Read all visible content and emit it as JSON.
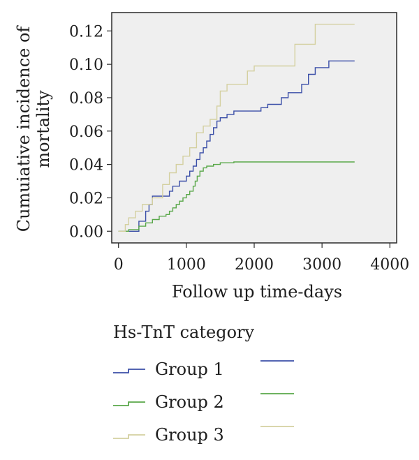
{
  "chart_data": {
    "type": "line",
    "step": true,
    "title": "",
    "xlabel": "Follow up time-days",
    "ylabel": "Cumuiative incidence of mortality",
    "xlim": [
      -100,
      4100
    ],
    "ylim": [
      -0.007,
      0.131
    ],
    "xticks": [
      0,
      1000,
      2000,
      3000,
      4000
    ],
    "yticks": [
      0.0,
      0.02,
      0.04,
      0.06,
      0.08,
      0.1,
      0.12
    ],
    "ytick_labels": [
      "0.00",
      "0.02",
      "0.04",
      "0.06",
      "0.08",
      "0.10",
      "0.12"
    ],
    "grid": false,
    "background": "#efefef",
    "legend": {
      "title": "Hs-TnT category",
      "position": "bottom",
      "entries": [
        "Group 1",
        "Group 2",
        "Group 3"
      ]
    },
    "series": [
      {
        "name": "Group 1",
        "color": "#3b4fa8",
        "x": [
          0,
          300,
          400,
          450,
          500,
          600,
          750,
          800,
          900,
          1000,
          1050,
          1100,
          1150,
          1200,
          1250,
          1300,
          1350,
          1400,
          1450,
          1500,
          1600,
          1700,
          1900,
          2100,
          2200,
          2400,
          2500,
          2600,
          2700,
          2800,
          2900,
          3100,
          3480
        ],
        "y": [
          0.0,
          0.006,
          0.012,
          0.016,
          0.021,
          0.021,
          0.024,
          0.027,
          0.03,
          0.033,
          0.036,
          0.039,
          0.043,
          0.047,
          0.05,
          0.054,
          0.058,
          0.062,
          0.066,
          0.068,
          0.07,
          0.072,
          0.072,
          0.074,
          0.076,
          0.08,
          0.083,
          0.083,
          0.088,
          0.094,
          0.098,
          0.102,
          0.102
        ]
      },
      {
        "name": "Group 2",
        "color": "#5aa84a",
        "x": [
          0,
          150,
          300,
          400,
          500,
          600,
          700,
          750,
          800,
          850,
          900,
          950,
          1000,
          1050,
          1100,
          1130,
          1160,
          1200,
          1250,
          1300,
          1400,
          1500,
          1700,
          2000,
          3480
        ],
        "y": [
          0.0,
          0.001,
          0.003,
          0.005,
          0.007,
          0.009,
          0.01,
          0.012,
          0.014,
          0.016,
          0.018,
          0.02,
          0.022,
          0.024,
          0.027,
          0.03,
          0.033,
          0.036,
          0.038,
          0.039,
          0.04,
          0.041,
          0.0415,
          0.0415,
          0.0415
        ]
      },
      {
        "name": "Group 3",
        "color": "#d4d0a0",
        "x": [
          0,
          100,
          150,
          250,
          350,
          500,
          650,
          750,
          850,
          950,
          1050,
          1150,
          1250,
          1350,
          1450,
          1500,
          1600,
          1900,
          2000,
          2600,
          2900,
          3480
        ],
        "y": [
          0.0,
          0.004,
          0.008,
          0.012,
          0.016,
          0.02,
          0.028,
          0.035,
          0.04,
          0.045,
          0.05,
          0.059,
          0.063,
          0.067,
          0.075,
          0.084,
          0.088,
          0.096,
          0.099,
          0.112,
          0.124,
          0.124
        ]
      }
    ]
  }
}
